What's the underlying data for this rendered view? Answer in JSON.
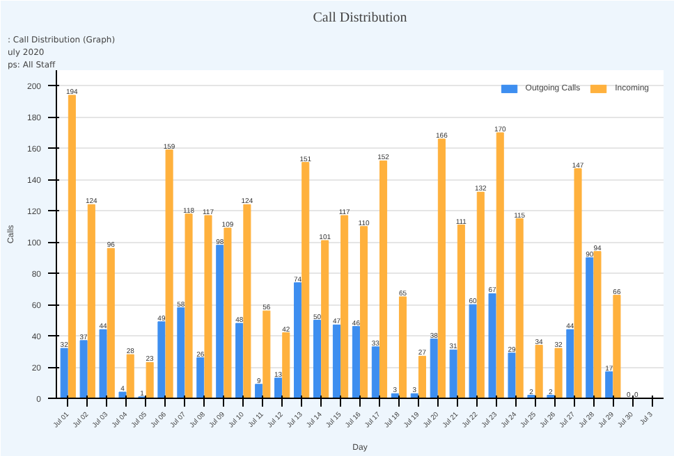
{
  "chart_data": {
    "type": "bar",
    "title": "Call Distribution",
    "subtitle": ": Call Distribution (Graph)",
    "annotations": [
      "uly 2020",
      "ps: All Staff"
    ],
    "xlabel": "Day",
    "ylabel": "Calls",
    "categories": [
      "Jul 01",
      "Jul 02",
      "Jul 03",
      "Jul 04",
      "Jul 05",
      "Jul 06",
      "Jul 07",
      "Jul 08",
      "Jul 09",
      "Jul 10",
      "Jul 11",
      "Jul 12",
      "Jul 13",
      "Jul 14",
      "Jul 15",
      "Jul 16",
      "Jul 17",
      "Jul 18",
      "Jul 19",
      "Jul 20",
      "Jul 21",
      "Jul 22",
      "Jul 23",
      "Jul 24",
      "Jul 25",
      "Jul 26",
      "Jul 27",
      "Jul 28",
      "Jul 29",
      "Jul 30",
      "Jul 3"
    ],
    "series": [
      {
        "name": "Outgoing Calls",
        "color": "#3d8ef0",
        "values": [
          32,
          37,
          44,
          4,
          1,
          49,
          58,
          26,
          98,
          48,
          9,
          13,
          74,
          50,
          47,
          46,
          33,
          3,
          3,
          38,
          31,
          60,
          67,
          29,
          2,
          2,
          44,
          90,
          17,
          0,
          null
        ]
      },
      {
        "name": "Incoming",
        "color": "#ffb13d",
        "values": [
          194,
          124,
          96,
          28,
          23,
          159,
          118,
          117,
          109,
          124,
          56,
          42,
          151,
          101,
          117,
          110,
          152,
          65,
          27,
          166,
          111,
          132,
          170,
          115,
          34,
          32,
          147,
          94,
          66,
          0,
          null
        ]
      }
    ],
    "ylim": [
      0,
      210
    ],
    "yticks": [
      0,
      20,
      40,
      60,
      80,
      100,
      120,
      140,
      160,
      180,
      200
    ],
    "grid": "y",
    "legend": "top right",
    "data_labels": true
  }
}
